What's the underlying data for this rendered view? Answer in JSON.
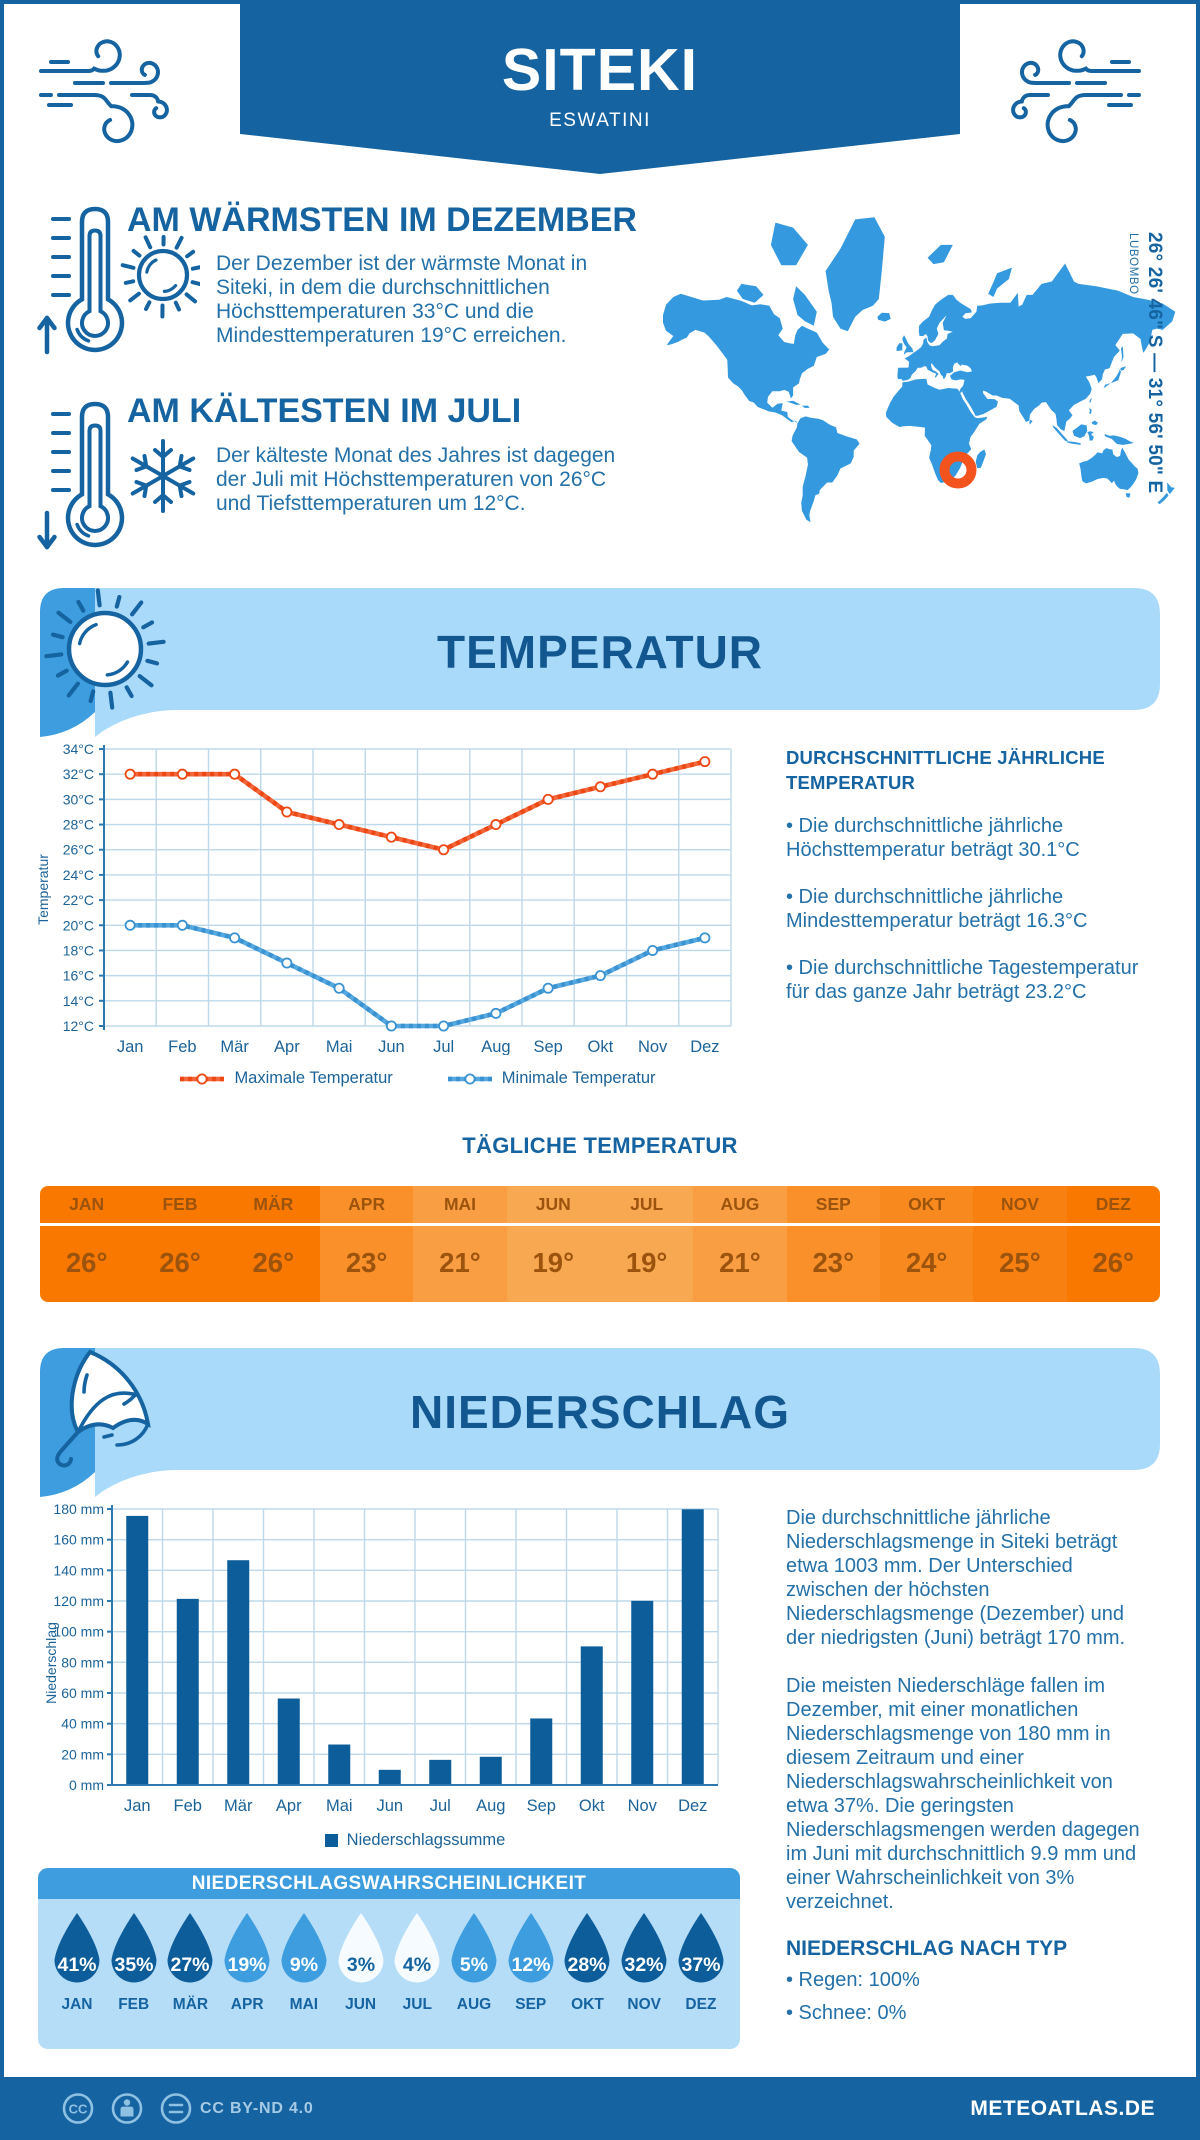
{
  "header": {
    "city": "SITEKI",
    "country": "ESWATINI"
  },
  "map": {
    "coordinates": "26° 26' 46\" S — 31° 56' 50\" E",
    "region": "LUBOMBO"
  },
  "warmest": {
    "heading": "AM WÄRMSTEN IM DEZEMBER",
    "text": "Der Dezember ist der wärmste Monat in Siteki, in dem die durchschnittlichen Höchsttemperaturen 33°C und die Mindesttemperaturen 19°C erreichen."
  },
  "coldest": {
    "heading": "AM KÄLTESTEN IM JULI",
    "text": "Der kälteste Monat des Jahres ist dagegen der Juli mit Höchsttemperaturen von 26°C und Tiefsttemperaturen um 12°C."
  },
  "temperature_section": {
    "title": "TEMPERATUR",
    "right_heading": "DURCHSCHNITTLICHE JÄHRLICHE TEMPERATUR",
    "bullets": [
      "• Die durchschnittliche jährliche Höchsttemperatur beträgt 30.1°C",
      "• Die durchschnittliche jährliche Mindesttemperatur beträgt 16.3°C",
      "• Die durchschnittliche Tagestemperatur für das ganze Jahr beträgt 23.2°C"
    ],
    "daily_title": "TÄGLICHE TEMPERATUR"
  },
  "precipitation_section": {
    "title": "NIEDERSCHLAG",
    "paragraphs": [
      "Die durchschnittliche jährliche Niederschlagsmenge in Siteki beträgt etwa 1003 mm. Der Unterschied zwischen der höchsten Niederschlagsmenge (Dezember) und der niedrigsten (Juni) beträgt 170 mm.",
      "Die meisten Niederschläge fallen im Dezember, mit einer monatlichen Niederschlagsmenge von 180 mm in diesem Zeitraum und einer Niederschlagswahrscheinlichkeit von etwa 37%. Die geringsten Niederschlagsmengen werden dagegen im Juni mit durchschnittlich 9.9 mm und einer Wahrscheinlichkeit von 3% verzeichnet."
    ],
    "type_heading": "NIEDERSCHLAG NACH TYP",
    "type_bullets": [
      "• Regen: 100%",
      "• Schnee: 0%"
    ],
    "probability_title": "NIEDERSCHLAGSWAHRSCHEINLICHKEIT"
  },
  "footer": {
    "license": "CC BY-ND 4.0",
    "cc_icon_text": "CC",
    "brand": "METEOATLAS.DE"
  },
  "chart_data": [
    {
      "id": "temperature",
      "type": "line",
      "title": "TEMPERATUR",
      "x": [
        "Jan",
        "Feb",
        "Mär",
        "Apr",
        "Mai",
        "Jun",
        "Jul",
        "Aug",
        "Sep",
        "Okt",
        "Nov",
        "Dez"
      ],
      "ylabel": "Temperatur",
      "ylim": [
        12,
        34
      ],
      "ytick_step": 2,
      "ytick_suffix": "°C",
      "grid": true,
      "legend_position": "bottom",
      "series": [
        {
          "name": "Maximale Temperatur",
          "color": "#f2663b",
          "dash_color": "#ed4814",
          "values": [
            32,
            32,
            32,
            29,
            28,
            27,
            26,
            28,
            30,
            31,
            32,
            33
          ]
        },
        {
          "name": "Minimale Temperatur",
          "color": "#56a8e0",
          "dash_color": "#3b92d1",
          "values": [
            20,
            20,
            19,
            17,
            15,
            12,
            12,
            13,
            15,
            16,
            18,
            19
          ]
        }
      ]
    },
    {
      "id": "daily_temperature",
      "type": "table",
      "title": "TÄGLICHE TEMPERATUR",
      "categories": [
        "JAN",
        "FEB",
        "MÄR",
        "APR",
        "MAI",
        "JUN",
        "JUL",
        "AUG",
        "SEP",
        "OKT",
        "NOV",
        "DEZ"
      ],
      "values": [
        26,
        26,
        26,
        23,
        21,
        19,
        19,
        21,
        23,
        24,
        25,
        26
      ],
      "unit": "°",
      "cell_colors": [
        "#f87800",
        "#f87800",
        "#f87800",
        "#f9902a",
        "#f99e43",
        "#f9a852",
        "#f9a852",
        "#f99e43",
        "#f9902a",
        "#f8891e",
        "#f88011",
        "#f87800"
      ]
    },
    {
      "id": "precipitation",
      "type": "bar",
      "title": "NIEDERSCHLAG",
      "x": [
        "Jan",
        "Feb",
        "Mär",
        "Apr",
        "Mai",
        "Jun",
        "Jul",
        "Aug",
        "Sep",
        "Okt",
        "Nov",
        "Dez"
      ],
      "ylabel": "Niederschlag",
      "ylim": [
        0,
        180
      ],
      "ytick_step": 20,
      "ytick_suffix": " mm",
      "grid": true,
      "legend_position": "bottom",
      "series": [
        {
          "name": "Niederschlagssumme",
          "color": "#0d5d9a",
          "values": [
            175.5,
            121.4,
            146.6,
            56.4,
            26.4,
            9.9,
            16.4,
            18.4,
            43.4,
            90.4,
            120.1,
            179.8
          ]
        }
      ]
    },
    {
      "id": "precipitation_probability",
      "type": "pictogram",
      "title": "NIEDERSCHLAGSWAHRSCHEINLICHKEIT",
      "categories": [
        "JAN",
        "FEB",
        "MÄR",
        "APR",
        "MAI",
        "JUN",
        "JUL",
        "AUG",
        "SEP",
        "OKT",
        "NOV",
        "DEZ"
      ],
      "values": [
        41,
        35,
        27,
        19,
        9,
        3,
        4,
        5,
        12,
        28,
        32,
        37
      ],
      "unit": "%",
      "drop_colors": [
        "#0d5d9a",
        "#0d5d9a",
        "#0d5d9a",
        "#3d9dde",
        "#3d9dde",
        "#f5fbfe",
        "#f5fbfe",
        "#3d9dde",
        "#3d9dde",
        "#0d5d9a",
        "#0d5d9a",
        "#0d5d9a"
      ],
      "text_colors": [
        "#ffffff",
        "#ffffff",
        "#ffffff",
        "#ffffff",
        "#ffffff",
        "#1563a0",
        "#1563a0",
        "#ffffff",
        "#ffffff",
        "#ffffff",
        "#ffffff",
        "#ffffff"
      ]
    }
  ]
}
